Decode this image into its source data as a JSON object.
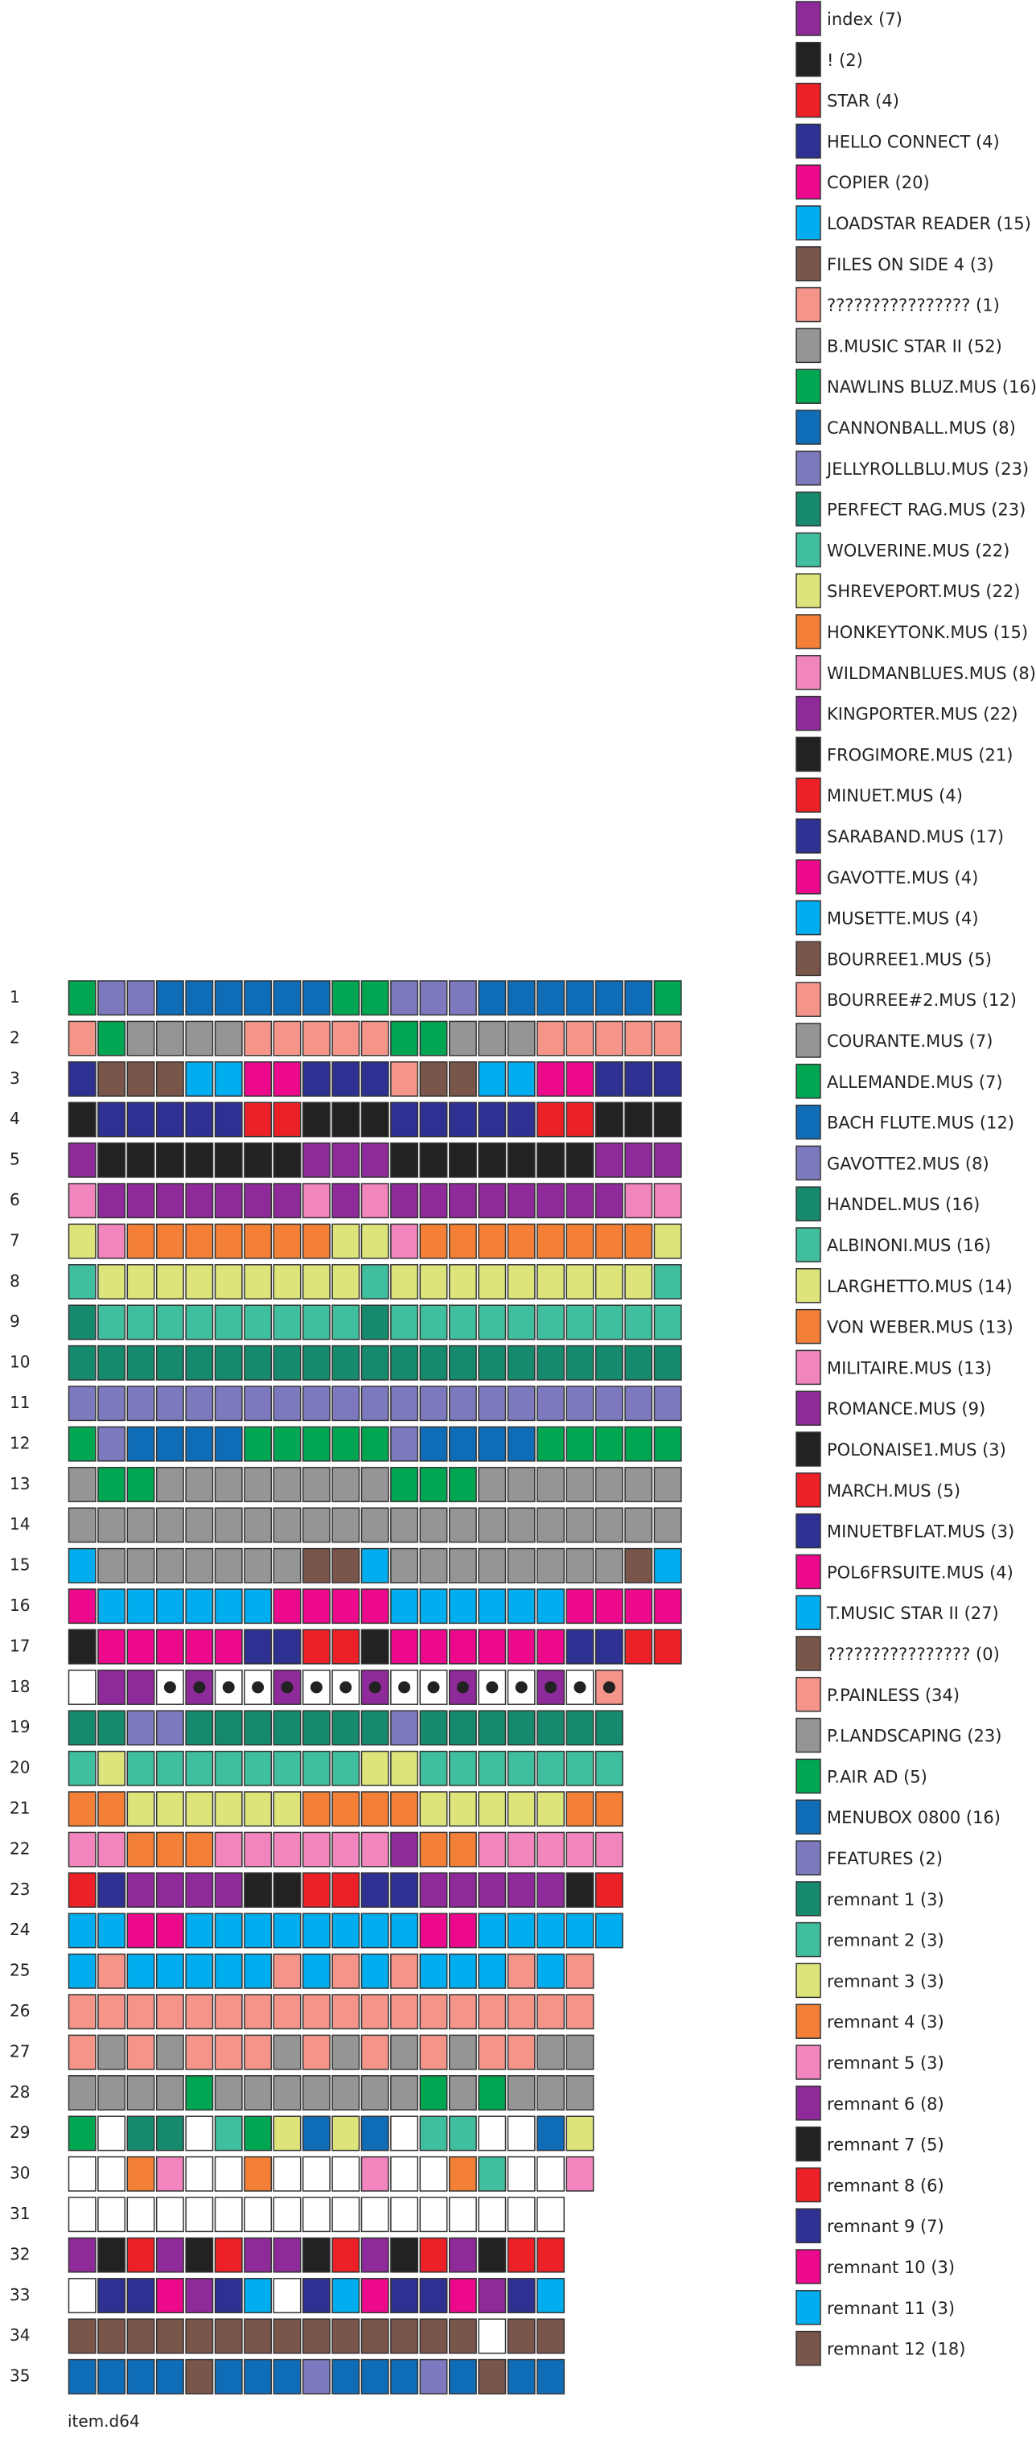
{
  "colors": {
    "0": "#ffffff",
    "1": "#8e2a9a",
    "2": "#222222",
    "3": "#ec2027",
    "4": "#2e3192",
    "5": "#ec098c",
    "6": "#00aeef",
    "7": "#7a554a",
    "8": "#f5958a",
    "9": "#959595",
    "10": "#00a651",
    "11": "#0f6cb6",
    "12": "#7d79bf",
    "13": "#168a6d",
    "14": "#3fbf9d",
    "15": "#dde57a",
    "16": "#f47f36",
    "17": "#f285bd",
    "18": "#8e2a9a",
    "19": "#222222",
    "20": "#ec2027",
    "21": "#2e3192",
    "22": "#ec098c",
    "23": "#00aeef",
    "24": "#7a554a",
    "25": "#f5958a",
    "26": "#959595",
    "27": "#00a651",
    "28": "#0f6cb6",
    "29": "#7d79bf",
    "30": "#168a6d",
    "31": "#3fbf9d",
    "32": "#dde57a",
    "33": "#f47f36",
    "34": "#f285bd",
    "35": "#8e2a9a",
    "36": "#222222",
    "37": "#ec2027",
    "38": "#2e3192",
    "39": "#ec098c",
    "40": "#00aeef",
    "41": "#7a554a",
    "42": "#f5958a",
    "43": "#959595",
    "44": "#00a651",
    "45": "#0f6cb6",
    "46": "#7d79bf",
    "47": "#168a6d",
    "48": "#3fbf9d",
    "49": "#dde57a",
    "50": "#f47f36",
    "51": "#f285bd",
    "52": "#8e2a9a",
    "53": "#222222",
    "54": "#ec2027",
    "55": "#2e3192",
    "56": "#ec098c",
    "57": "#00aeef",
    "58": "#7a554a"
  },
  "legend": [
    {
      "label": "index (7)",
      "color": 1
    },
    {
      "label": "! (2)",
      "color": 2
    },
    {
      "label": "STAR (4)",
      "color": 3
    },
    {
      "label": "HELLO CONNECT (4)",
      "color": 4
    },
    {
      "label": "COPIER (20)",
      "color": 5
    },
    {
      "label": "LOADSTAR READER (15)",
      "color": 6
    },
    {
      "label": "FILES ON SIDE 4 (3)",
      "color": 7
    },
    {
      "label": "???????????????? (1)",
      "color": 8
    },
    {
      "label": "B.MUSIC STAR II (52)",
      "color": 9
    },
    {
      "label": "NAWLINS BLUZ.MUS (16)",
      "color": 10
    },
    {
      "label": "CANNONBALL.MUS (8)",
      "color": 11
    },
    {
      "label": "JELLYROLLBLU.MUS (23)",
      "color": 12
    },
    {
      "label": "PERFECT RAG.MUS (23)",
      "color": 13
    },
    {
      "label": "WOLVERINE.MUS (22)",
      "color": 14
    },
    {
      "label": "SHREVEPORT.MUS (22)",
      "color": 15
    },
    {
      "label": "HONKEYTONK.MUS (15)",
      "color": 16
    },
    {
      "label": "WILDMANBLUES.MUS (8)",
      "color": 17
    },
    {
      "label": "KINGPORTER.MUS (22)",
      "color": 18
    },
    {
      "label": "FROGIMORE.MUS (21)",
      "color": 19
    },
    {
      "label": "MINUET.MUS (4)",
      "color": 20
    },
    {
      "label": "SARABAND.MUS (17)",
      "color": 21
    },
    {
      "label": "GAVOTTE.MUS (4)",
      "color": 22
    },
    {
      "label": "MUSETTE.MUS (4)",
      "color": 23
    },
    {
      "label": "BOURREE1.MUS (5)",
      "color": 24
    },
    {
      "label": "BOURREE#2.MUS (12)",
      "color": 25
    },
    {
      "label": "COURANTE.MUS (7)",
      "color": 26
    },
    {
      "label": "ALLEMANDE.MUS (7)",
      "color": 27
    },
    {
      "label": "BACH FLUTE.MUS (12)",
      "color": 28
    },
    {
      "label": "GAVOTTE2.MUS (8)",
      "color": 29
    },
    {
      "label": "HANDEL.MUS (16)",
      "color": 30
    },
    {
      "label": "ALBINONI.MUS (16)",
      "color": 31
    },
    {
      "label": "LARGHETTO.MUS (14)",
      "color": 32
    },
    {
      "label": "VON WEBER.MUS (13)",
      "color": 33
    },
    {
      "label": "MILITAIRE.MUS (13)",
      "color": 34
    },
    {
      "label": "ROMANCE.MUS (9)",
      "color": 35
    },
    {
      "label": "POLONAISE1.MUS (3)",
      "color": 36
    },
    {
      "label": "MARCH.MUS (5)",
      "color": 37
    },
    {
      "label": "MINUETBFLAT.MUS (3)",
      "color": 38
    },
    {
      "label": "POL6FRSUITE.MUS (4)",
      "color": 39
    },
    {
      "label": "T.MUSIC STAR II (27)",
      "color": 40
    },
    {
      "label": "???????????????? (0)",
      "color": 41
    },
    {
      "label": "P.PAINLESS (34)",
      "color": 42
    },
    {
      "label": "P.LANDSCAPING (23)",
      "color": 43
    },
    {
      "label": "P.AIR AD (5)",
      "color": 44
    },
    {
      "label": "MENUBOX 0800 (16)",
      "color": 45
    },
    {
      "label": "FEATURES (2)",
      "color": 46
    },
    {
      "label": "remnant 1 (3)",
      "color": 47
    },
    {
      "label": "remnant 2 (3)",
      "color": 48
    },
    {
      "label": "remnant 3 (3)",
      "color": 49
    },
    {
      "label": "remnant 4 (3)",
      "color": 50
    },
    {
      "label": "remnant 5 (3)",
      "color": 51
    },
    {
      "label": "remnant 6 (8)",
      "color": 52
    },
    {
      "label": "remnant 7 (5)",
      "color": 53
    },
    {
      "label": "remnant 8 (6)",
      "color": 54
    },
    {
      "label": "remnant 9 (7)",
      "color": 55
    },
    {
      "label": "remnant 10 (3)",
      "color": 56
    },
    {
      "label": "remnant 11 (3)",
      "color": 57
    },
    {
      "label": "remnant 12 (18)",
      "color": 58
    }
  ],
  "tracks": [
    {
      "label": "1",
      "sectors": [
        10,
        12,
        12,
        11,
        11,
        11,
        11,
        11,
        11,
        10,
        10,
        12,
        12,
        12,
        11,
        11,
        11,
        11,
        11,
        11,
        10
      ]
    },
    {
      "label": "2",
      "sectors": [
        8,
        10,
        9,
        9,
        9,
        9,
        8,
        8,
        8,
        8,
        8,
        10,
        10,
        9,
        9,
        9,
        8,
        8,
        8,
        8,
        8
      ]
    },
    {
      "label": "3",
      "sectors": [
        4,
        7,
        7,
        7,
        6,
        6,
        5,
        5,
        4,
        4,
        4,
        8,
        7,
        7,
        6,
        6,
        5,
        5,
        4,
        4,
        4
      ]
    },
    {
      "label": "4",
      "sectors": [
        2,
        4,
        4,
        4,
        4,
        4,
        3,
        3,
        2,
        2,
        2,
        4,
        4,
        4,
        4,
        4,
        3,
        3,
        2,
        2,
        2
      ]
    },
    {
      "label": "5",
      "sectors": [
        1,
        2,
        2,
        2,
        2,
        2,
        2,
        2,
        1,
        1,
        1,
        2,
        2,
        2,
        2,
        2,
        2,
        2,
        1,
        1,
        1
      ]
    },
    {
      "label": "6",
      "sectors": [
        17,
        1,
        1,
        1,
        1,
        1,
        1,
        1,
        17,
        1,
        17,
        1,
        1,
        1,
        1,
        1,
        1,
        1,
        1,
        17,
        17
      ]
    },
    {
      "label": "7",
      "sectors": [
        15,
        17,
        16,
        16,
        16,
        16,
        16,
        16,
        16,
        15,
        15,
        17,
        16,
        16,
        16,
        16,
        16,
        16,
        16,
        16,
        15
      ]
    },
    {
      "label": "8",
      "sectors": [
        14,
        15,
        15,
        15,
        15,
        15,
        15,
        15,
        15,
        15,
        14,
        15,
        15,
        15,
        15,
        15,
        15,
        15,
        15,
        15,
        14
      ]
    },
    {
      "label": "9",
      "sectors": [
        13,
        14,
        14,
        14,
        14,
        14,
        14,
        14,
        14,
        14,
        13,
        14,
        14,
        14,
        14,
        14,
        14,
        14,
        14,
        14,
        14
      ]
    },
    {
      "label": "10",
      "sectors": [
        13,
        13,
        13,
        13,
        13,
        13,
        13,
        13,
        13,
        13,
        13,
        13,
        13,
        13,
        13,
        13,
        13,
        13,
        13,
        13,
        13
      ]
    },
    {
      "label": "11",
      "sectors": [
        12,
        12,
        12,
        12,
        12,
        12,
        12,
        12,
        12,
        12,
        12,
        12,
        12,
        12,
        12,
        12,
        12,
        12,
        12,
        12,
        12
      ]
    },
    {
      "label": "12",
      "sectors": [
        10,
        12,
        11,
        11,
        11,
        11,
        10,
        10,
        10,
        10,
        10,
        12,
        11,
        11,
        11,
        11,
        10,
        10,
        10,
        10,
        10
      ]
    },
    {
      "label": "13",
      "sectors": [
        9,
        10,
        10,
        9,
        9,
        9,
        9,
        9,
        9,
        9,
        9,
        10,
        10,
        10,
        9,
        9,
        9,
        9,
        9,
        9,
        9
      ]
    },
    {
      "label": "14",
      "sectors": [
        9,
        9,
        9,
        9,
        9,
        9,
        9,
        9,
        9,
        9,
        9,
        9,
        9,
        9,
        9,
        9,
        9,
        9,
        9,
        9,
        9
      ]
    },
    {
      "label": "15",
      "sectors": [
        6,
        9,
        9,
        9,
        9,
        9,
        9,
        9,
        7,
        7,
        6,
        9,
        9,
        9,
        9,
        9,
        9,
        9,
        9,
        7,
        6
      ]
    },
    {
      "label": "16",
      "sectors": [
        5,
        6,
        6,
        6,
        6,
        6,
        6,
        5,
        5,
        5,
        5,
        6,
        6,
        6,
        6,
        6,
        6,
        5,
        5,
        5,
        5
      ]
    },
    {
      "label": "17",
      "sectors": [
        2,
        5,
        5,
        5,
        5,
        5,
        4,
        4,
        3,
        3,
        2,
        5,
        5,
        5,
        5,
        5,
        5,
        4,
        4,
        3,
        3
      ]
    },
    {
      "label": "18",
      "sectors": [
        0,
        1,
        1,
        0,
        1,
        0,
        0,
        1,
        0,
        0,
        1,
        0,
        0,
        1,
        0,
        0,
        1,
        0,
        8
      ],
      "dots": [
        3,
        4,
        5,
        6,
        7,
        8,
        9,
        10,
        11,
        12,
        13,
        14,
        15,
        16,
        17,
        18
      ]
    },
    {
      "label": "19",
      "sectors": [
        13,
        13,
        12,
        12,
        13,
        13,
        13,
        13,
        13,
        13,
        13,
        12,
        13,
        13,
        13,
        13,
        13,
        13,
        13
      ]
    },
    {
      "label": "20",
      "sectors": [
        14,
        15,
        14,
        14,
        14,
        14,
        14,
        14,
        14,
        14,
        15,
        15,
        14,
        14,
        14,
        14,
        14,
        14,
        14
      ]
    },
    {
      "label": "21",
      "sectors": [
        16,
        16,
        15,
        15,
        15,
        15,
        15,
        15,
        16,
        16,
        16,
        16,
        15,
        15,
        15,
        15,
        15,
        16,
        16
      ]
    },
    {
      "label": "22",
      "sectors": [
        17,
        17,
        16,
        16,
        16,
        17,
        17,
        17,
        17,
        17,
        17,
        18,
        16,
        16,
        17,
        17,
        17,
        17,
        17
      ]
    },
    {
      "label": "23",
      "sectors": [
        20,
        21,
        18,
        18,
        18,
        18,
        19,
        19,
        20,
        20,
        21,
        21,
        18,
        18,
        18,
        18,
        18,
        19,
        20
      ]
    },
    {
      "label": "24",
      "sectors": [
        23,
        23,
        22,
        22,
        23,
        23,
        23,
        23,
        23,
        23,
        23,
        23,
        22,
        22,
        23,
        23,
        23,
        23,
        23
      ]
    },
    {
      "label": "25",
      "sectors": [
        23,
        25,
        23,
        23,
        23,
        23,
        23,
        25,
        23,
        25,
        23,
        25,
        23,
        23,
        23,
        25,
        23,
        25
      ]
    },
    {
      "label": "26",
      "sectors": [
        25,
        25,
        25,
        25,
        25,
        25,
        25,
        25,
        25,
        25,
        25,
        25,
        25,
        25,
        25,
        25,
        25,
        25
      ]
    },
    {
      "label": "27",
      "sectors": [
        25,
        26,
        25,
        26,
        25,
        25,
        25,
        26,
        25,
        26,
        25,
        26,
        25,
        26,
        25,
        25,
        26,
        26
      ]
    },
    {
      "label": "28",
      "sectors": [
        26,
        26,
        26,
        26,
        27,
        26,
        26,
        26,
        26,
        26,
        26,
        26,
        27,
        26,
        27,
        26,
        26,
        26
      ]
    },
    {
      "label": "29",
      "sectors": [
        27,
        0,
        30,
        30,
        0,
        31,
        27,
        32,
        28,
        32,
        28,
        0,
        31,
        31,
        0,
        0,
        28,
        32
      ]
    },
    {
      "label": "30",
      "sectors": [
        0,
        0,
        33,
        34,
        0,
        0,
        33,
        0,
        0,
        0,
        34,
        0,
        0,
        33,
        31,
        0,
        0,
        34
      ]
    },
    {
      "label": "31",
      "sectors": [
        0,
        0,
        0,
        0,
        0,
        0,
        0,
        0,
        0,
        0,
        0,
        0,
        0,
        0,
        0,
        0,
        0
      ]
    },
    {
      "label": "32",
      "sectors": [
        35,
        36,
        37,
        35,
        36,
        37,
        35,
        35,
        36,
        37,
        35,
        36,
        37,
        35,
        36,
        37,
        37
      ]
    },
    {
      "label": "33",
      "sectors": [
        0,
        38,
        38,
        39,
        35,
        38,
        40,
        0,
        38,
        40,
        39,
        38,
        38,
        39,
        35,
        38,
        40
      ]
    },
    {
      "label": "34",
      "sectors": [
        41,
        41,
        41,
        41,
        41,
        41,
        41,
        41,
        41,
        41,
        41,
        41,
        41,
        41,
        0,
        41,
        41
      ]
    },
    {
      "label": "35",
      "sectors": [
        45,
        45,
        45,
        45,
        41,
        45,
        45,
        45,
        46,
        45,
        45,
        45,
        46,
        45,
        41,
        45,
        45
      ]
    }
  ],
  "caption": "item.d64"
}
